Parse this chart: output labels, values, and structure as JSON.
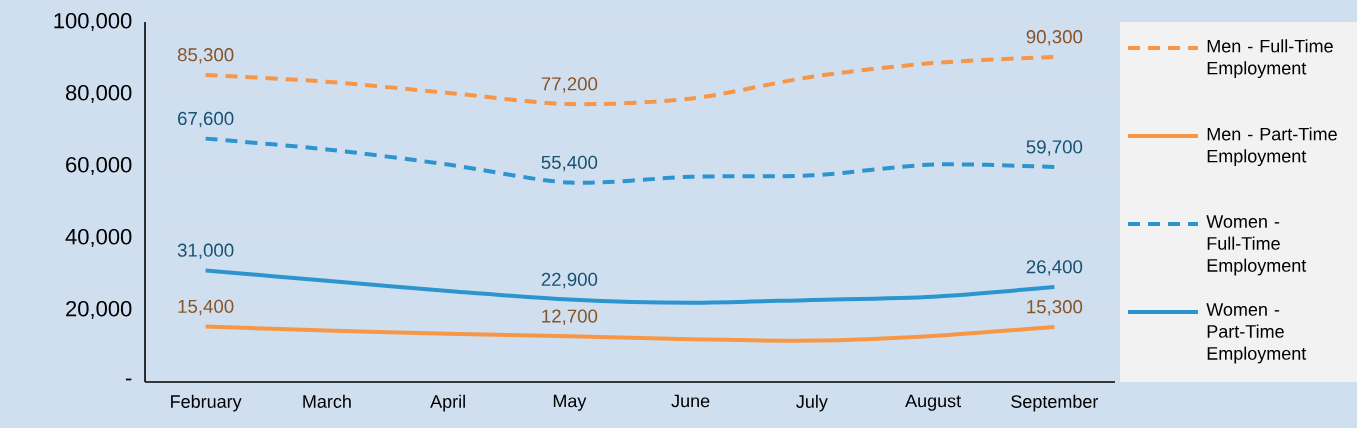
{
  "chart_data": {
    "type": "line",
    "categories": [
      "February",
      "March",
      "April",
      "May",
      "June",
      "July",
      "August",
      "September"
    ],
    "series": [
      {
        "name": "Men - Full-Time Employment",
        "color": "#f79646",
        "line_style": "dashed",
        "values": [
          85300,
          83400,
          80300,
          77200,
          78700,
          84800,
          88600,
          90300
        ],
        "value_labels": [
          "85,300",
          null,
          null,
          "77,200",
          null,
          null,
          null,
          "90,300"
        ]
      },
      {
        "name": "Men - Part-Time Employment",
        "color": "#f79646",
        "line_style": "solid",
        "values": [
          15400,
          14300,
          13400,
          12700,
          11900,
          11500,
          12800,
          15300
        ],
        "value_labels": [
          "15,400",
          null,
          null,
          "12,700",
          null,
          null,
          null,
          "15,300"
        ]
      },
      {
        "name": "Women - Full-Time Employment",
        "color": "#2c95cf",
        "line_style": "dashed",
        "values": [
          67600,
          64600,
          60400,
          55400,
          57000,
          57400,
          60400,
          59700
        ],
        "value_labels": [
          "67,600",
          null,
          null,
          "55,400",
          null,
          null,
          null,
          "59,700"
        ]
      },
      {
        "name": "Women - Part-Time Employment",
        "color": "#2c95cf",
        "line_style": "solid",
        "values": [
          31000,
          28100,
          25300,
          22900,
          22000,
          22800,
          23700,
          26400
        ],
        "value_labels": [
          "31,000",
          null,
          null,
          "22,900",
          null,
          null,
          null,
          "26,400"
        ]
      }
    ],
    "ylim": [
      0,
      100000
    ],
    "yticks": [
      {
        "value": 0,
        "label": "-"
      },
      {
        "value": 20000,
        "label": "20,000"
      },
      {
        "value": 40000,
        "label": "40,000"
      },
      {
        "value": 60000,
        "label": "60,000"
      },
      {
        "value": 80000,
        "label": "80,000"
      },
      {
        "value": 100000,
        "label": "100,000"
      }
    ],
    "grid": "y",
    "legend": "right",
    "marker": "none"
  }
}
